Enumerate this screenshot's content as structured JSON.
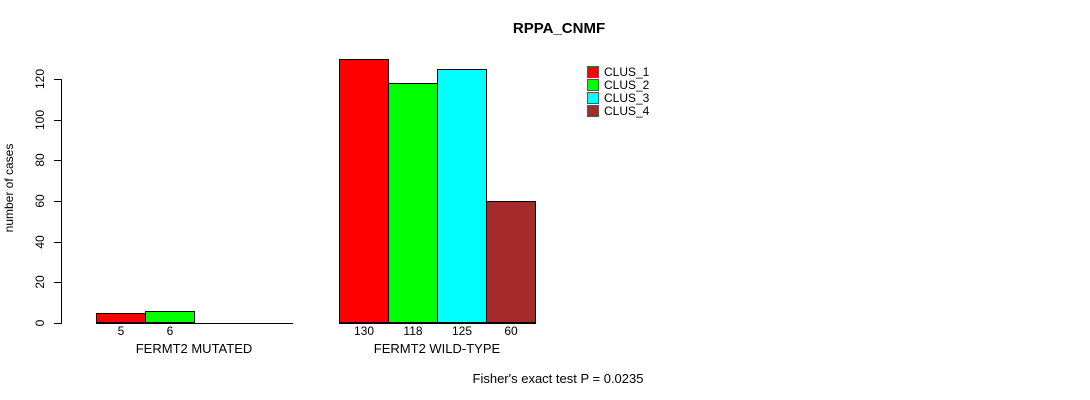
{
  "chart_data": {
    "type": "bar",
    "title": "RPPA_CNMF",
    "ylabel": "number of cases",
    "xlabel": "",
    "categories": [
      "FERMT2 MUTATED",
      "FERMT2 WILD-TYPE"
    ],
    "series": [
      {
        "name": "CLUS_1",
        "color": "#ff0000",
        "values": [
          5,
          130
        ]
      },
      {
        "name": "CLUS_2",
        "color": "#00ff00",
        "values": [
          6,
          118
        ]
      },
      {
        "name": "CLUS_3",
        "color": "#00ffff",
        "values": [
          0,
          125
        ]
      },
      {
        "name": "CLUS_4",
        "color": "#a52a2a",
        "values": [
          0,
          60
        ]
      }
    ],
    "yticks": [
      0,
      20,
      40,
      60,
      80,
      100,
      120
    ],
    "ylim": [
      0,
      131
    ],
    "grid": false,
    "legend_position": "top-right",
    "bar_value_labels": "shown under each non-zero bar",
    "annotation": "Fisher's exact test P = 0.0235"
  }
}
